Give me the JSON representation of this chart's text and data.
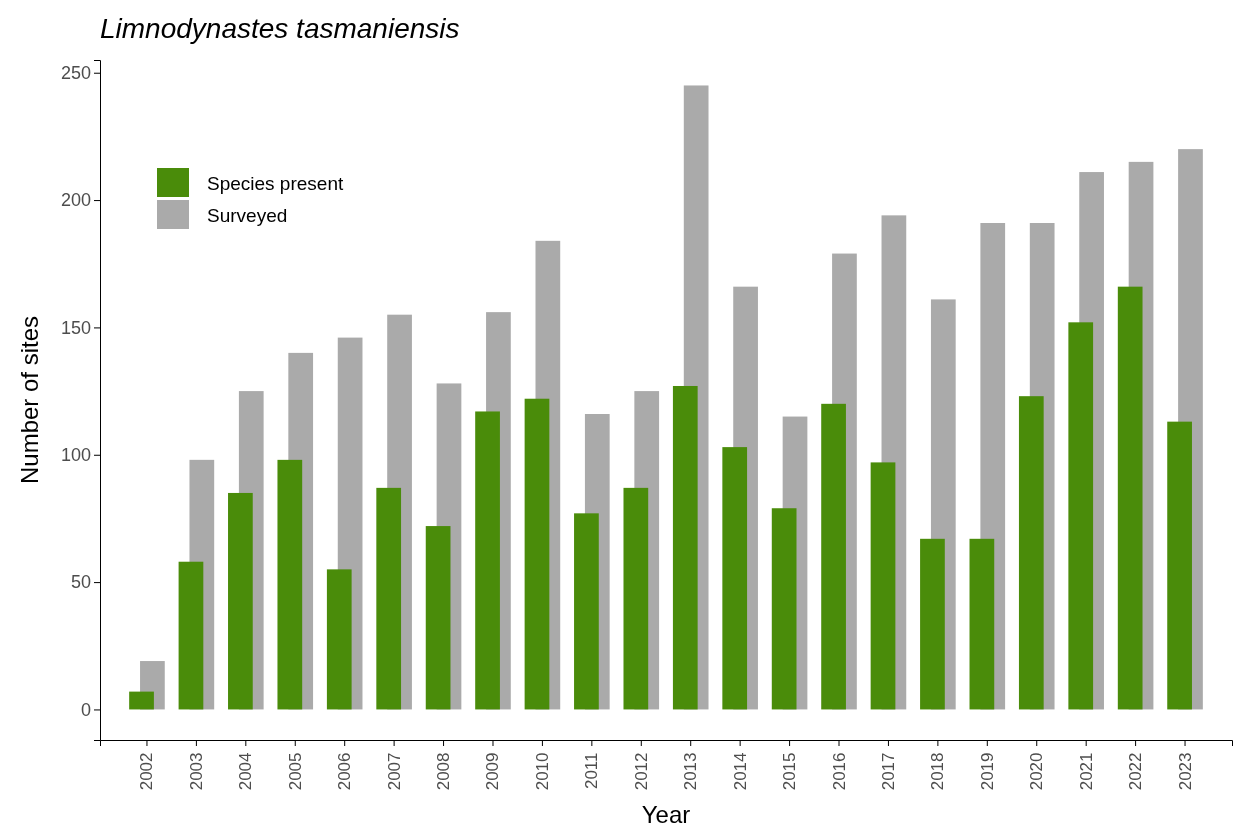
{
  "chart_data": {
    "type": "bar",
    "title": "Limnodynastes tasmaniensis",
    "xlabel": "Year",
    "ylabel": "Number of sites",
    "categories": [
      "2002",
      "2003",
      "2004",
      "2005",
      "2006",
      "2007",
      "2008",
      "2009",
      "2010",
      "2011",
      "2012",
      "2013",
      "2014",
      "2015",
      "2016",
      "2017",
      "2018",
      "2019",
      "2020",
      "2021",
      "2022",
      "2023"
    ],
    "series": [
      {
        "name": "Species present",
        "color": "#4a8c0a",
        "values": [
          7,
          58,
          85,
          98,
          55,
          87,
          72,
          117,
          122,
          77,
          87,
          127,
          103,
          79,
          120,
          97,
          67,
          67,
          123,
          152,
          166,
          113
        ]
      },
      {
        "name": "Surveyed",
        "color": "#aaaaaa",
        "values": [
          19,
          98,
          125,
          140,
          146,
          155,
          128,
          156,
          184,
          116,
          125,
          245,
          166,
          115,
          179,
          194,
          161,
          191,
          191,
          211,
          215,
          220
        ]
      }
    ],
    "ylim": [
      -12,
      255
    ],
    "yticks": [
      0,
      50,
      100,
      150,
      200,
      250
    ],
    "grid": false,
    "legend": "top left"
  }
}
